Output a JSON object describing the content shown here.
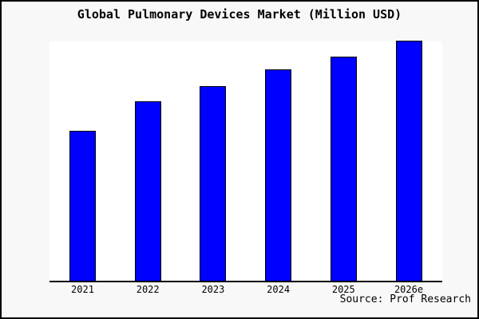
{
  "window": {
    "background_color": "#f8f8f8",
    "frame_border_color": "#000000"
  },
  "chart_data": {
    "type": "bar",
    "title": "Global Pulmonary Devices Market (Million USD)",
    "categories": [
      "2021",
      "2022",
      "2023",
      "2024",
      "2025",
      "2026e"
    ],
    "values": [
      188,
      225,
      244,
      265,
      281,
      301
    ],
    "value_note": "No y-axis scale or data labels are shown in the image; values are relative bar heights in pixels.",
    "xlabel": "",
    "ylabel": "",
    "ylim": [
      0,
      300
    ],
    "grid": false,
    "legend": null,
    "bar_color": "#0000ff",
    "bar_border_color": "#000000",
    "plot_background": "#ffffff",
    "axis_color": "#000000"
  },
  "footer": {
    "source_label": "Source: Prof Research"
  }
}
